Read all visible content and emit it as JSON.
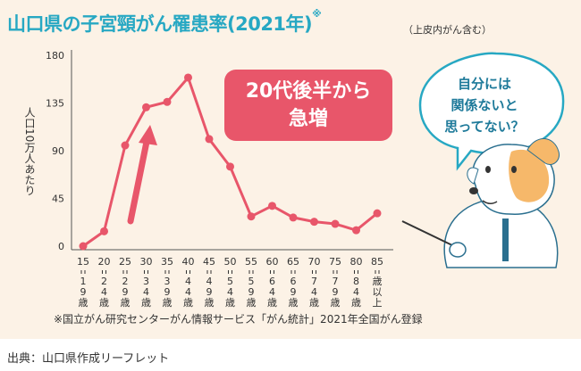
{
  "header": {
    "title": "山口県の子宮頸がん罹患率(2021年)",
    "title_mark": "※",
    "title_note": "（上皮内がん含む）"
  },
  "callout": {
    "line1": "20代後半から",
    "line2": "急増"
  },
  "bubble": {
    "line1": "自分には",
    "line2": "関係ないと",
    "line3": "思ってない？"
  },
  "footnote": "※国立がん研究センターがん情報サービス「がん統計」2021年全国がん登録",
  "credit": "出典：山口県作成リーフレット",
  "colors": {
    "title": "#27a8c3",
    "line": "#e8566a",
    "panel": "#fcf2e6",
    "bubble_text": "#1e7a9a"
  },
  "chart_data": {
    "type": "line",
    "ylabel": "人口10万人あたり",
    "ylim": [
      0,
      180
    ],
    "yticks": [
      0,
      45,
      90,
      135,
      180
    ],
    "grid": false,
    "categories": [
      {
        "top": "15",
        "bottom": "19歳"
      },
      {
        "top": "20",
        "bottom": "24歳"
      },
      {
        "top": "25",
        "bottom": "29歳"
      },
      {
        "top": "30",
        "bottom": "34歳"
      },
      {
        "top": "35",
        "bottom": "39歳"
      },
      {
        "top": "40",
        "bottom": "44歳"
      },
      {
        "top": "45",
        "bottom": "49歳"
      },
      {
        "top": "50",
        "bottom": "54歳"
      },
      {
        "top": "55",
        "bottom": "59歳"
      },
      {
        "top": "60",
        "bottom": "64歳"
      },
      {
        "top": "65",
        "bottom": "69歳"
      },
      {
        "top": "70",
        "bottom": "74歳"
      },
      {
        "top": "75",
        "bottom": "79歳"
      },
      {
        "top": "80",
        "bottom": "84歳"
      },
      {
        "top": "85",
        "bottom": "歳以上"
      }
    ],
    "series": [
      {
        "values": [
          0,
          14,
          95,
          131,
          136,
          159,
          101,
          75,
          28,
          38,
          27,
          23,
          21,
          15,
          31
        ]
      }
    ]
  }
}
